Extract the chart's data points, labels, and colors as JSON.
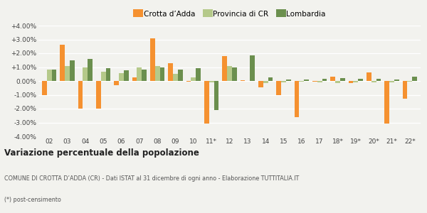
{
  "categories": [
    "02",
    "03",
    "04",
    "05",
    "06",
    "07",
    "08",
    "09",
    "10",
    "11*",
    "12",
    "13",
    "14",
    "15",
    "16",
    "17",
    "18*",
    "19*",
    "20*",
    "21*",
    "22*"
  ],
  "crotta": [
    -1.0,
    2.6,
    -2.0,
    -2.0,
    -0.3,
    0.25,
    3.1,
    1.3,
    -0.05,
    -3.1,
    1.8,
    0.05,
    -0.45,
    -1.05,
    -2.6,
    -0.05,
    0.3,
    -0.15,
    0.6,
    -3.1,
    -1.3
  ],
  "provincia": [
    0.8,
    1.1,
    1.0,
    0.65,
    0.55,
    1.0,
    1.1,
    0.5,
    0.25,
    -0.1,
    1.1,
    0.02,
    -0.15,
    -0.1,
    -0.05,
    -0.1,
    -0.15,
    -0.1,
    -0.1,
    -0.1,
    -0.05
  ],
  "lombardia": [
    0.8,
    1.5,
    1.6,
    0.9,
    0.75,
    0.8,
    1.0,
    0.8,
    0.9,
    -2.1,
    1.0,
    1.85,
    0.25,
    0.1,
    0.1,
    0.15,
    0.2,
    0.15,
    0.15,
    0.1,
    0.3
  ],
  "color_crotta": "#f59130",
  "color_provincia": "#b5c98a",
  "color_lombardia": "#6b8f4e",
  "bg_color": "#f2f2ee",
  "chart_bg": "#f2f2ee",
  "grid_color": "#ffffff",
  "ylim": [
    -4.0,
    4.0
  ],
  "yticks": [
    -4.0,
    -3.0,
    -2.0,
    -1.0,
    0.0,
    1.0,
    2.0,
    3.0,
    4.0
  ],
  "title_main": "Variazione percentuale della popolazione",
  "subtitle1": "COMUNE DI CROTTA D’ADDA (CR) - Dati ISTAT al 31 dicembre di ogni anno - Elaborazione TUTTITALIA.IT",
  "subtitle2": "(*) post-censimento",
  "legend_labels": [
    "Crotta d’Adda",
    "Provincia di CR",
    "Lombardia"
  ]
}
